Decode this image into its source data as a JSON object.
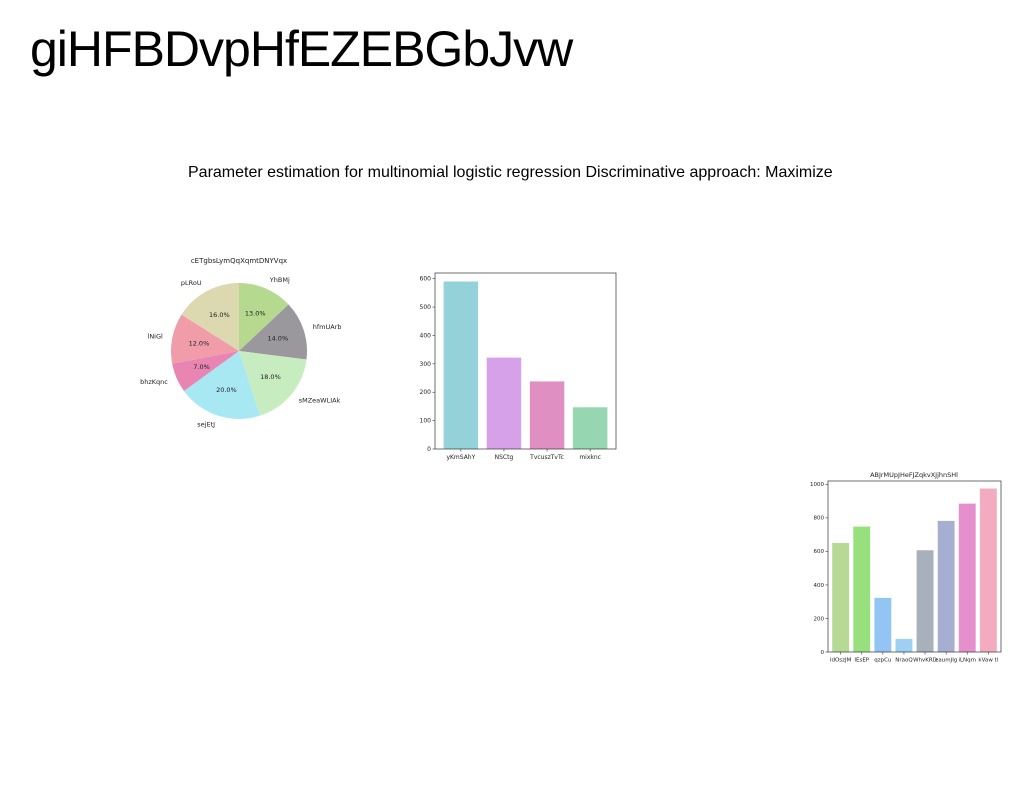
{
  "page": {
    "title": "giHFBDvpHfEZEBGbJvw",
    "subtitle": "Parameter estimation for multinomial logistic regression Discriminative approach: Maximize"
  },
  "chart_data": [
    {
      "type": "pie",
      "title": "cETgbsLymQqXqmtDNYVqx",
      "start_angle_deg": 90,
      "direction": "clockwise",
      "slices": [
        {
          "label": "YhBMj",
          "value": 13.0,
          "pct_label": "13.0%",
          "color": "#b5d98e"
        },
        {
          "label": "hfmUArb",
          "value": 14.0,
          "pct_label": "14.0%",
          "color": "#9a979d"
        },
        {
          "label": "sMZeaWLIAk",
          "value": 18.0,
          "pct_label": "18.0%",
          "color": "#c6ecc0"
        },
        {
          "label": "sejEtJ",
          "value": 20.0,
          "pct_label": "20.0%",
          "color": "#a7e8f2"
        },
        {
          "label": "bhzKqnc",
          "value": 7.0,
          "pct_label": "7.0%",
          "color": "#e885b3"
        },
        {
          "label": "lNiGl",
          "value": 12.0,
          "pct_label": "12.0%",
          "color": "#f09ca9"
        },
        {
          "label": "pLRoU",
          "value": 16.0,
          "pct_label": "16.0%",
          "color": "#dcd9b0"
        }
      ]
    },
    {
      "type": "bar",
      "title": "",
      "categories": [
        "yKmSAhY",
        "NSCtg",
        "TvcuszTvTc",
        "mixknc"
      ],
      "values": [
        590,
        322,
        238,
        147
      ],
      "colors": [
        "#93d2d8",
        "#d7a1ea",
        "#e08fc3",
        "#96d6b0"
      ],
      "ylim": [
        0,
        620
      ],
      "yticks": [
        0,
        100,
        200,
        300,
        400,
        500,
        600
      ],
      "grid": false
    },
    {
      "type": "bar",
      "title": "ABJrMUpJHeFJZqkvXJjhnSHl",
      "categories": [
        "ldOszJM",
        "IEsEP",
        "qzpCu",
        "NraoQ",
        "WhvKRD",
        "eaumJIg",
        "iLNqm",
        "kVaw tl"
      ],
      "values": [
        650,
        748,
        323,
        78,
        607,
        782,
        885,
        975
      ],
      "colors": [
        "#b6da96",
        "#97e07d",
        "#92c5f3",
        "#9fcff3",
        "#a8b1bb",
        "#a6aed2",
        "#e590cd",
        "#f3abbf"
      ],
      "ylim": [
        0,
        1020
      ],
      "yticks": [
        0,
        200,
        400,
        600,
        800,
        1000
      ],
      "grid": false
    }
  ]
}
